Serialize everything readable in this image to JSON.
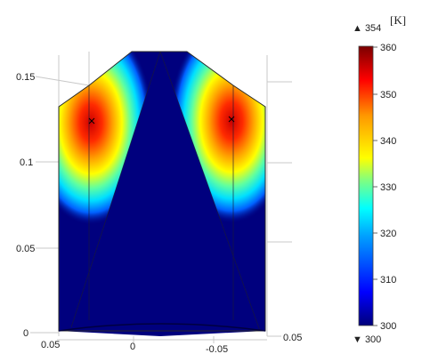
{
  "plot": {
    "z_ticks": [
      "0.15",
      "0.1",
      "0.05",
      "0"
    ],
    "x_ticks": [
      "0.05",
      "0",
      "-0.05"
    ],
    "y_ticks": [
      "0.05"
    ]
  },
  "legend": {
    "unit": "[K]",
    "max_marker": "▲ 354",
    "min_marker": "▼ 300",
    "ticks": [
      "360",
      "350",
      "340",
      "330",
      "320",
      "310",
      "300"
    ],
    "range": [
      300,
      360
    ]
  },
  "colors": {
    "colormap": [
      "#00007a",
      "#0000ff",
      "#00a0ff",
      "#00ffff",
      "#80ff80",
      "#ffff00",
      "#ff9900",
      "#ff0000",
      "#7a0000"
    ],
    "cold_surface": "#00007e"
  }
}
